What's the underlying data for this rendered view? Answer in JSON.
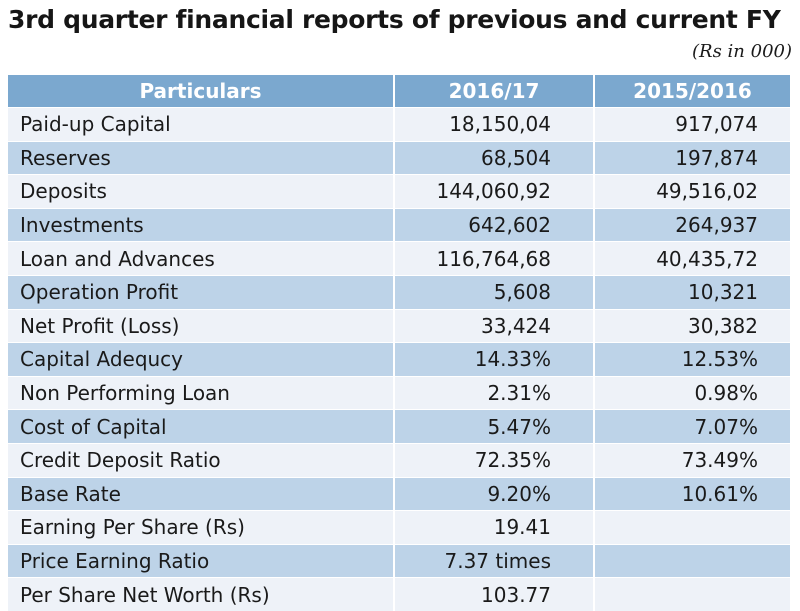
{
  "title": "3rd quarter financial reports of previous and current FY",
  "unit": "(Rs in 000)",
  "colors": {
    "header_bg": "#7ba8cf",
    "row_light": "#eef2f8",
    "row_dark": "#bdd3e8"
  },
  "table": {
    "headers": [
      "Particulars",
      "2016/17",
      "2015/2016"
    ],
    "rows": [
      {
        "label": "Paid-up Capital",
        "current": "18,150,04",
        "previous": "917,074"
      },
      {
        "label": "Reserves",
        "current": "68,504",
        "previous": "197,874"
      },
      {
        "label": "Deposits",
        "current": "144,060,92",
        "previous": "49,516,02"
      },
      {
        "label": "Investments",
        "current": "642,602",
        "previous": "264,937"
      },
      {
        "label": "Loan and Advances",
        "current": "116,764,68",
        "previous": "40,435,72"
      },
      {
        "label": "Operation Profit",
        "current": "5,608",
        "previous": "10,321"
      },
      {
        "label": "Net Profit (Loss)",
        "current": "33,424",
        "previous": "30,382"
      },
      {
        "label": "Capital Adequcy",
        "current": "14.33%",
        "previous": "12.53%"
      },
      {
        "label": "Non Performing Loan",
        "current": "2.31%",
        "previous": "0.98%"
      },
      {
        "label": "Cost of Capital",
        "current": "5.47%",
        "previous": "7.07%"
      },
      {
        "label": "Credit Deposit Ratio",
        "current": "72.35%",
        "previous": "73.49%"
      },
      {
        "label": "Base Rate",
        "current": "9.20%",
        "previous": "10.61%"
      },
      {
        "label": "Earning Per Share (Rs)",
        "current": "19.41",
        "previous": ""
      },
      {
        "label": "Price Earning Ratio",
        "current": "7.37 times",
        "previous": ""
      },
      {
        "label": "Per Share Net Worth (Rs)",
        "current": "103.77",
        "previous": ""
      }
    ]
  }
}
